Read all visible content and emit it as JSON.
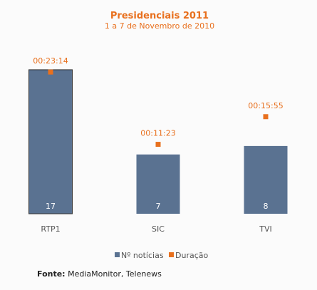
{
  "chart_data": {
    "type": "bar",
    "title": "Presidenciais 2011",
    "subtitle": "1 a 7 de Novembro de 2010",
    "categories": [
      "RTP1",
      "SIC",
      "TVI"
    ],
    "series": [
      {
        "name": "Nº notícias",
        "type": "bar",
        "values": [
          17,
          7,
          8
        ]
      },
      {
        "name": "Duração",
        "type": "scatter",
        "values": [
          "00:23:14",
          "00:11:23",
          "00:15:55"
        ],
        "seconds": [
          1394,
          683,
          955
        ]
      }
    ],
    "ylim_bars": [
      0,
      18
    ],
    "ylim_duration_seconds": [
      0,
      1500
    ],
    "grid": false,
    "legend_position": "bottom"
  },
  "colors": {
    "bar": "#5a7291",
    "duration": "#e8701e",
    "outline": "#333333"
  },
  "source": {
    "label": "Fonte:",
    "text": " MediaMonitor, Telenews"
  }
}
